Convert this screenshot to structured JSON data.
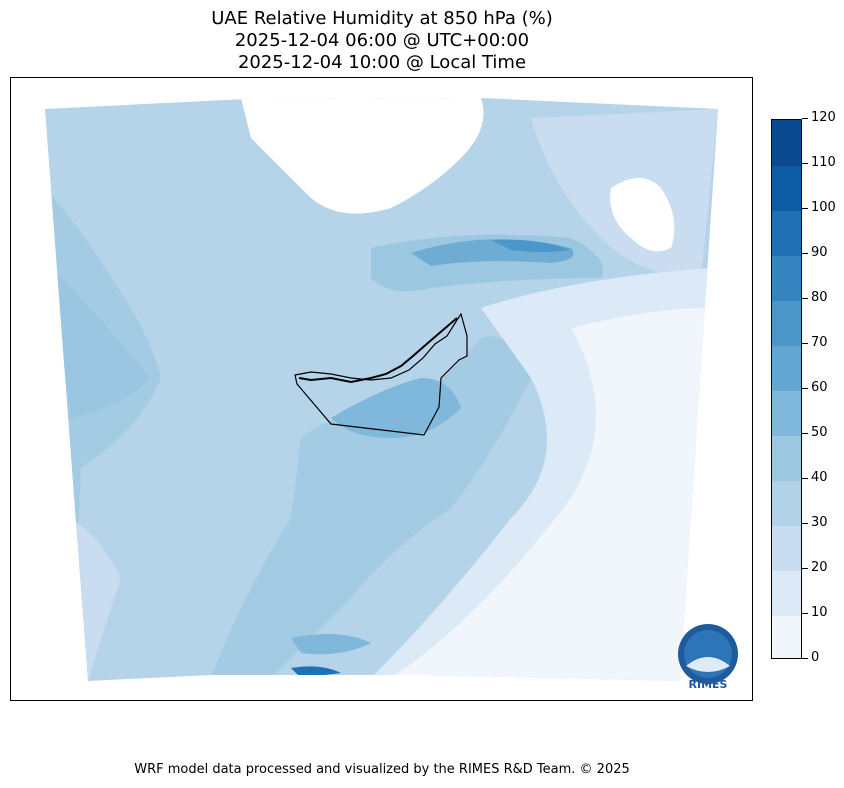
{
  "title": {
    "line1": "UAE Relative Humidity at 850 hPa (%)",
    "line2": "2025-12-04 06:00 @ UTC+00:00",
    "line3": "2025-12-04 10:00 @ Local Time"
  },
  "colorbar": {
    "levels": [
      0,
      10,
      20,
      30,
      40,
      50,
      60,
      70,
      80,
      90,
      100,
      110,
      120
    ],
    "tick_labels": [
      "0",
      "10",
      "20",
      "30",
      "40",
      "50",
      "60",
      "70",
      "80",
      "90",
      "100",
      "110",
      "120"
    ],
    "colors": [
      "#f0f6fc",
      "#dce9f6",
      "#c9dcf0",
      "#b2d2e8",
      "#9bc8e0",
      "#7fb8da",
      "#62a6d2",
      "#4c97c9",
      "#3584c0",
      "#2070b4",
      "#0c5ca6",
      "#094a91",
      "#08306b"
    ]
  },
  "logo": {
    "text": "RIMES"
  },
  "footer": "WRF model data processed and visualized by the RIMES R&D Team. © 2025"
}
